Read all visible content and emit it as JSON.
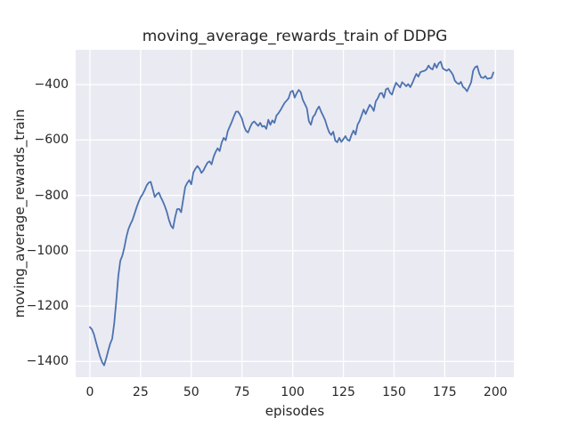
{
  "figure": {
    "title": "moving_average_rewards_train of DDPG",
    "xlabel": "episodes",
    "ylabel": "moving_average_rewards_train"
  },
  "chart_data": {
    "type": "line",
    "title": "moving_average_rewards_train of DDPG",
    "xlabel": "episodes",
    "ylabel": "moving_average_rewards_train",
    "legend_position": "none",
    "grid": true,
    "style": {
      "line_color": "#4c72b0",
      "line_width": 1.8,
      "axes_background": "#eaeaf2",
      "grid_color": "#ffffff",
      "text_color": "#262626",
      "figure_background": "#ffffff"
    },
    "xlim": [
      -7.0,
      209.1
    ],
    "ylim": [
      -1456.8,
      -274.2
    ],
    "x_ticks": [
      0,
      25,
      50,
      75,
      100,
      125,
      150,
      175,
      200
    ],
    "y_ticks": [
      -400,
      -600,
      -800,
      -1000,
      -1200,
      -1400
    ],
    "series": [
      {
        "name": "moving_average_rewards_train",
        "x_start": 0,
        "x_step": 1,
        "values": [
          -1276,
          -1284,
          -1302,
          -1330,
          -1356,
          -1382,
          -1402,
          -1414,
          -1390,
          -1362,
          -1336,
          -1318,
          -1262,
          -1182,
          -1092,
          -1036,
          -1018,
          -988,
          -950,
          -922,
          -904,
          -889,
          -867,
          -844,
          -824,
          -807,
          -796,
          -781,
          -764,
          -754,
          -751,
          -778,
          -806,
          -796,
          -790,
          -807,
          -822,
          -840,
          -861,
          -889,
          -910,
          -919,
          -880,
          -850,
          -849,
          -861,
          -815,
          -770,
          -755,
          -745,
          -760,
          -718,
          -704,
          -694,
          -703,
          -719,
          -710,
          -695,
          -682,
          -677,
          -688,
          -661,
          -643,
          -630,
          -640,
          -609,
          -592,
          -601,
          -568,
          -551,
          -534,
          -515,
          -498,
          -497,
          -508,
          -523,
          -550,
          -567,
          -573,
          -554,
          -539,
          -533,
          -541,
          -549,
          -538,
          -552,
          -549,
          -560,
          -527,
          -545,
          -529,
          -538,
          -512,
          -503,
          -492,
          -479,
          -466,
          -458,
          -449,
          -426,
          -422,
          -447,
          -431,
          -419,
          -428,
          -455,
          -470,
          -485,
          -532,
          -545,
          -517,
          -508,
          -490,
          -479,
          -497,
          -512,
          -528,
          -552,
          -572,
          -582,
          -570,
          -602,
          -608,
          -592,
          -607,
          -597,
          -586,
          -599,
          -603,
          -582,
          -566,
          -580,
          -545,
          -531,
          -511,
          -490,
          -506,
          -489,
          -473,
          -481,
          -495,
          -460,
          -449,
          -432,
          -430,
          -447,
          -417,
          -413,
          -429,
          -436,
          -412,
          -393,
          -402,
          -410,
          -391,
          -398,
          -406,
          -398,
          -409,
          -395,
          -377,
          -361,
          -371,
          -355,
          -352,
          -350,
          -345,
          -331,
          -341,
          -345,
          -324,
          -339,
          -323,
          -317,
          -341,
          -346,
          -350,
          -344,
          -353,
          -364,
          -386,
          -394,
          -398,
          -390,
          -408,
          -414,
          -424,
          -408,
          -392,
          -350,
          -337,
          -333,
          -359,
          -374,
          -376,
          -369,
          -379,
          -377,
          -376,
          -356
        ]
      }
    ]
  }
}
